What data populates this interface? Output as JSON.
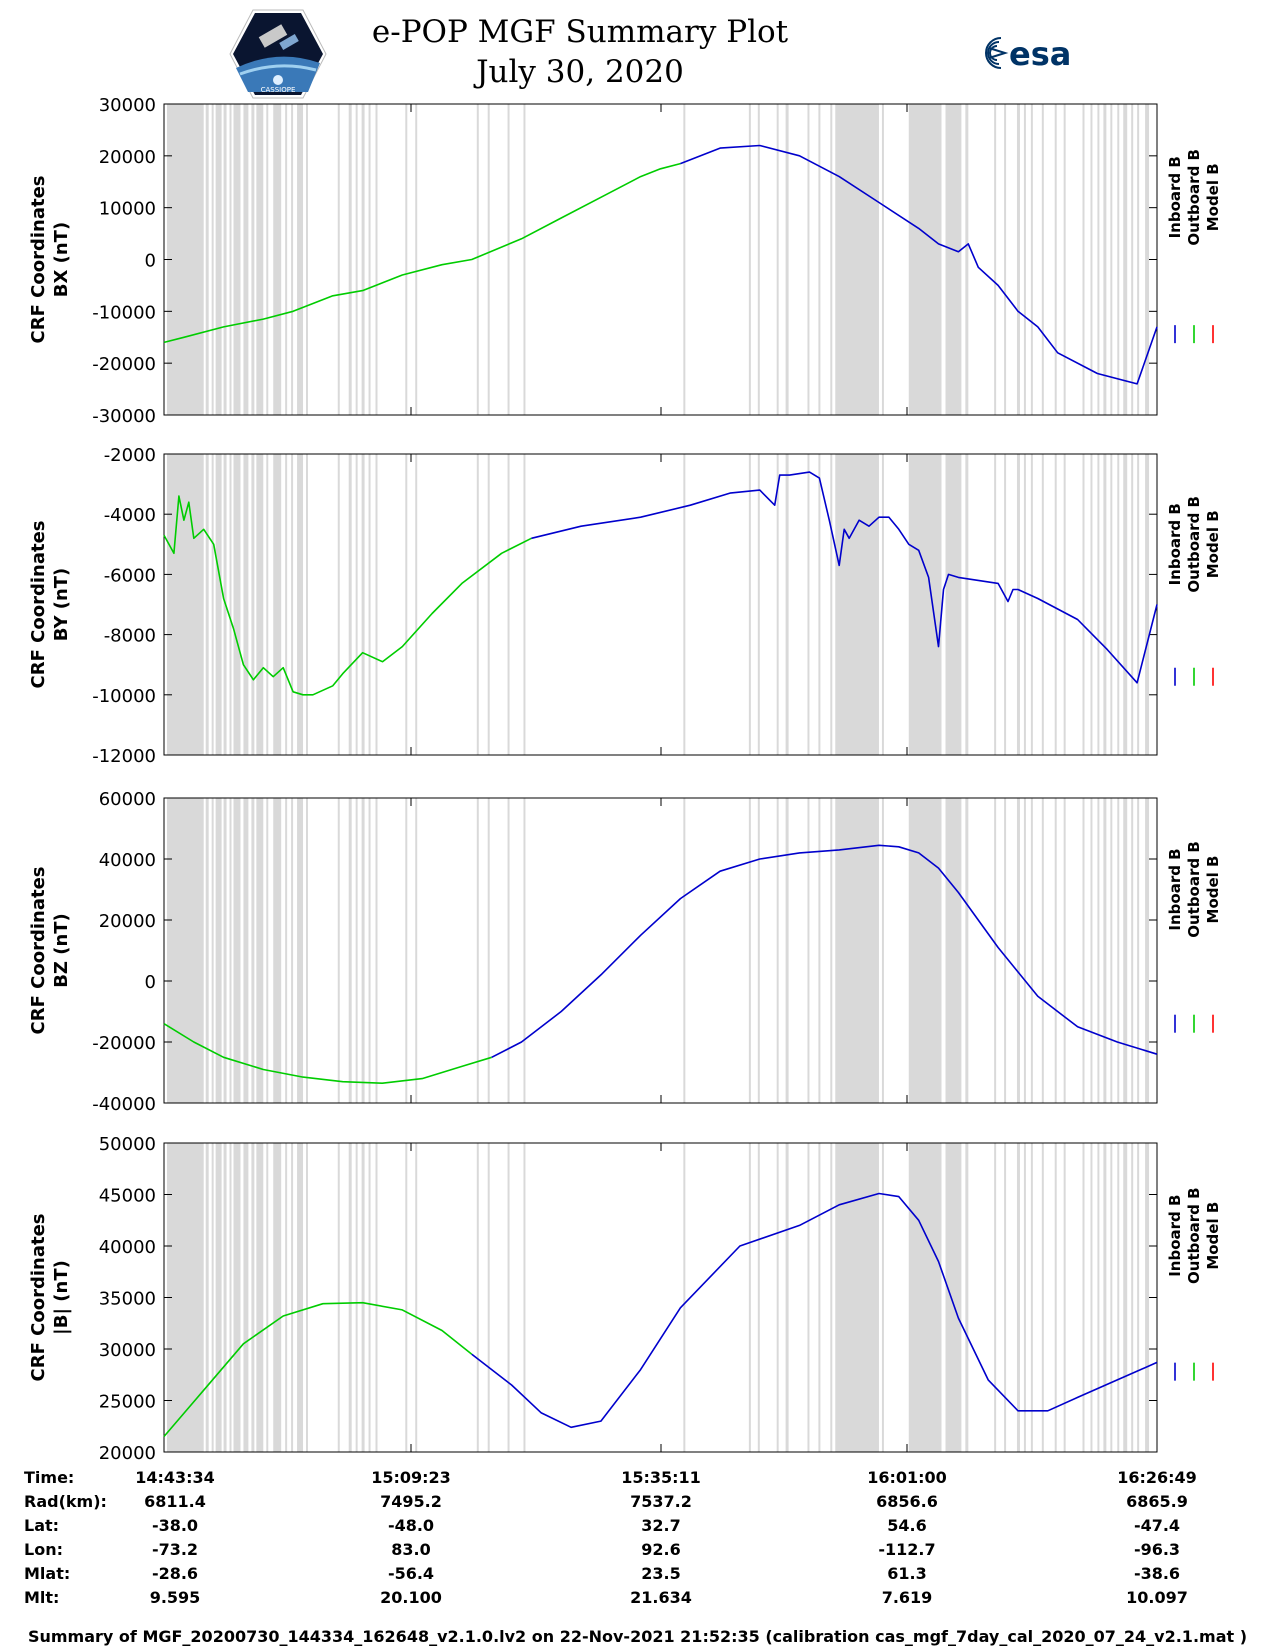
{
  "header": {
    "title_line1": "e-POP MGF Summary Plot",
    "title_line2": "July 30, 2020",
    "left_logo_text": "CASSIOPE",
    "right_logo_text": "esa"
  },
  "colors": {
    "inboard": "#0000cc",
    "outboard": "#00cc00",
    "model": "#ff0000",
    "gap_shading": "#d9d9d9",
    "esa_blue": "#003366"
  },
  "legend": {
    "inboard": "Inboard B",
    "outboard": "Outboard B",
    "model": "Model B"
  },
  "chart_data": [
    {
      "type": "line",
      "ylabel_line1": "CRF Coordinates",
      "ylabel_line2": "BX (nT)",
      "ylim": [
        -30000,
        30000
      ],
      "yticks": [
        -30000,
        -20000,
        -10000,
        0,
        10000,
        20000,
        30000
      ],
      "series": [
        {
          "name": "Outboard B",
          "x": [
            0,
            2,
            6,
            10,
            13,
            17,
            20,
            24,
            28,
            31,
            36,
            40,
            44,
            48,
            50,
            52
          ],
          "y": [
            -16000,
            -15000,
            -13000,
            -11500,
            -10000,
            -7000,
            -6000,
            -3000,
            -1000,
            0,
            4000,
            8000,
            12000,
            16000,
            17500,
            18500
          ]
        },
        {
          "name": "Inboard B",
          "x": [
            52,
            56,
            60,
            64,
            68,
            72,
            76,
            78,
            80,
            81,
            82,
            84,
            86,
            88,
            90,
            94,
            98,
            100
          ],
          "y": [
            18500,
            21500,
            22000,
            20000,
            16000,
            11000,
            6000,
            3000,
            1500,
            3000,
            -1500,
            -5000,
            -10000,
            -13000,
            -18000,
            -22000,
            -24000,
            -13000
          ]
        }
      ]
    },
    {
      "type": "line",
      "ylabel_line1": "CRF Coordinates",
      "ylabel_line2": "BY (nT)",
      "ylim": [
        -12000,
        -2000
      ],
      "yticks": [
        -12000,
        -10000,
        -8000,
        -6000,
        -4000,
        -2000
      ],
      "series": [
        {
          "name": "Outboard B",
          "x": [
            0,
            1,
            1.5,
            2,
            2.5,
            3,
            4,
            5,
            6,
            7,
            8,
            9,
            10,
            11,
            12,
            13,
            14,
            15,
            17,
            18,
            20,
            22,
            24,
            27,
            30,
            34,
            37
          ],
          "y": [
            -4700,
            -5300,
            -3400,
            -4200,
            -3600,
            -4800,
            -4500,
            -5000,
            -6800,
            -7800,
            -9000,
            -9500,
            -9100,
            -9400,
            -9100,
            -9900,
            -10000,
            -10000,
            -9700,
            -9300,
            -8600,
            -8900,
            -8400,
            -7300,
            -6300,
            -5300,
            -4800
          ]
        },
        {
          "name": "Inboard B",
          "x": [
            37,
            42,
            48,
            53,
            57,
            60,
            61.5,
            62,
            63,
            65,
            66,
            67,
            68,
            68.5,
            69,
            70,
            71,
            72,
            73,
            74,
            75,
            76,
            77,
            78,
            78.5,
            79,
            80,
            82,
            84,
            85,
            85.5,
            86,
            88,
            92,
            95,
            98,
            100
          ],
          "y": [
            -4800,
            -4400,
            -4100,
            -3700,
            -3300,
            -3200,
            -3700,
            -2700,
            -2700,
            -2600,
            -2800,
            -4200,
            -5700,
            -4500,
            -4800,
            -4200,
            -4400,
            -4100,
            -4100,
            -4500,
            -5000,
            -5200,
            -6100,
            -8400,
            -6500,
            -6000,
            -6100,
            -6200,
            -6300,
            -6900,
            -6500,
            -6500,
            -6800,
            -7500,
            -8500,
            -9600,
            -7000
          ]
        }
      ]
    },
    {
      "type": "line",
      "ylabel_line1": "CRF Coordinates",
      "ylabel_line2": "BZ (nT)",
      "ylim": [
        -40000,
        60000
      ],
      "yticks": [
        -40000,
        -20000,
        0,
        20000,
        40000,
        60000
      ],
      "series": [
        {
          "name": "Outboard B",
          "x": [
            0,
            3,
            6,
            10,
            14,
            18,
            22,
            26,
            30,
            33
          ],
          "y": [
            -14000,
            -20000,
            -25000,
            -29000,
            -31500,
            -33000,
            -33500,
            -32000,
            -28000,
            -25000
          ]
        },
        {
          "name": "Inboard B",
          "x": [
            33,
            36,
            40,
            44,
            48,
            52,
            56,
            60,
            64,
            68,
            72,
            74,
            76,
            78,
            80,
            84,
            88,
            92,
            96,
            100
          ],
          "y": [
            -25000,
            -20000,
            -10000,
            2000,
            15000,
            27000,
            36000,
            40000,
            42000,
            43000,
            44500,
            44000,
            42000,
            37000,
            29000,
            11000,
            -5000,
            -15000,
            -20000,
            -24000
          ]
        }
      ]
    },
    {
      "type": "line",
      "ylabel_line1": "CRF Coordinates",
      "ylabel_line2": "|B| (nT)",
      "ylim": [
        20000,
        50000
      ],
      "yticks": [
        20000,
        25000,
        30000,
        35000,
        40000,
        45000,
        50000
      ],
      "series": [
        {
          "name": "Outboard B",
          "x": [
            0,
            4,
            8,
            12,
            16,
            20,
            24,
            28,
            31
          ],
          "y": [
            21500,
            26000,
            30500,
            33200,
            34400,
            34500,
            33800,
            31800,
            29500
          ]
        },
        {
          "name": "Inboard B",
          "x": [
            31,
            35,
            38,
            41,
            44,
            48,
            52,
            58,
            64,
            68,
            72,
            74,
            76,
            78,
            80,
            83,
            86,
            89,
            92,
            96,
            100
          ],
          "y": [
            29500,
            26500,
            23800,
            22400,
            23000,
            28000,
            34000,
            40000,
            42000,
            44000,
            45100,
            44800,
            42500,
            38500,
            33000,
            27000,
            24000,
            24000,
            25300,
            27000,
            28700
          ]
        }
      ]
    }
  ],
  "gap_ranges": [
    [
      0.3,
      4.0
    ],
    [
      4.2,
      4.5
    ],
    [
      4.8,
      5.0
    ],
    [
      5.2,
      5.8
    ],
    [
      6.0,
      6.3
    ],
    [
      6.6,
      6.8
    ],
    [
      7.0,
      7.7
    ],
    [
      8.0,
      8.5
    ],
    [
      8.8,
      9.1
    ],
    [
      9.3,
      10.0
    ],
    [
      10.3,
      10.5
    ],
    [
      11.0,
      11.8
    ],
    [
      12.2,
      12.4
    ],
    [
      12.8,
      13.0
    ],
    [
      13.4,
      14.0
    ],
    [
      14.3,
      14.5
    ],
    [
      17.5,
      17.7
    ],
    [
      18.6,
      18.9
    ],
    [
      19.3,
      19.5
    ],
    [
      19.9,
      20.2
    ],
    [
      20.6,
      20.8
    ],
    [
      21.3,
      21.5
    ],
    [
      24.3,
      24.5
    ],
    [
      25.3,
      25.5
    ],
    [
      31.5,
      31.7
    ],
    [
      32.6,
      32.8
    ],
    [
      34.6,
      34.8
    ],
    [
      36.2,
      36.4
    ],
    [
      52.3,
      52.5
    ],
    [
      58.9,
      59.1
    ],
    [
      59.8,
      60.0
    ],
    [
      61.7,
      61.9
    ],
    [
      62.6,
      62.9
    ],
    [
      64.8,
      65.0
    ],
    [
      65.9,
      66.1
    ],
    [
      67.1,
      67.3
    ],
    [
      67.6,
      72.0
    ],
    [
      72.3,
      72.5
    ],
    [
      75.0,
      78.3
    ],
    [
      78.7,
      80.3
    ],
    [
      80.7,
      81.0
    ],
    [
      83.6,
      83.8
    ],
    [
      84.6,
      84.8
    ],
    [
      85.9,
      86.2
    ],
    [
      86.6,
      86.8
    ],
    [
      87.3,
      87.5
    ],
    [
      88.4,
      88.6
    ],
    [
      89.7,
      89.9
    ],
    [
      90.6,
      90.8
    ],
    [
      92.5,
      92.7
    ],
    [
      93.3,
      93.5
    ],
    [
      94.0,
      94.2
    ],
    [
      94.6,
      94.9
    ],
    [
      95.3,
      95.5
    ],
    [
      96.0,
      96.2
    ],
    [
      96.6,
      97.0
    ],
    [
      97.4,
      97.6
    ],
    [
      98.0,
      98.2
    ],
    [
      98.8,
      99.2
    ]
  ],
  "info_table": {
    "labels": [
      "Time:",
      "Rad(km):",
      "Lat:",
      "Lon:",
      "Mlat:",
      "Mlt:"
    ],
    "columns": [
      [
        "14:43:34",
        "6811.4",
        "-38.0",
        "-73.2",
        "-28.6",
        "9.595"
      ],
      [
        "15:09:23",
        "7495.2",
        "-48.0",
        "83.0",
        "-56.4",
        "20.100"
      ],
      [
        "15:35:11",
        "7537.2",
        "32.7",
        "92.6",
        "23.5",
        "21.634"
      ],
      [
        "16:01:00",
        "6856.6",
        "54.6",
        "-112.7",
        "61.3",
        "7.619"
      ],
      [
        "16:26:49",
        "6865.9",
        "-47.4",
        "-96.3",
        "-38.6",
        "10.097"
      ]
    ]
  },
  "footer": "Summary of MGF_20200730_144334_162648_v2.1.0.lv2 on 22-Nov-2021 21:52:35 (calibration cas_mgf_7day_cal_2020_07_24_v2.1.mat )"
}
